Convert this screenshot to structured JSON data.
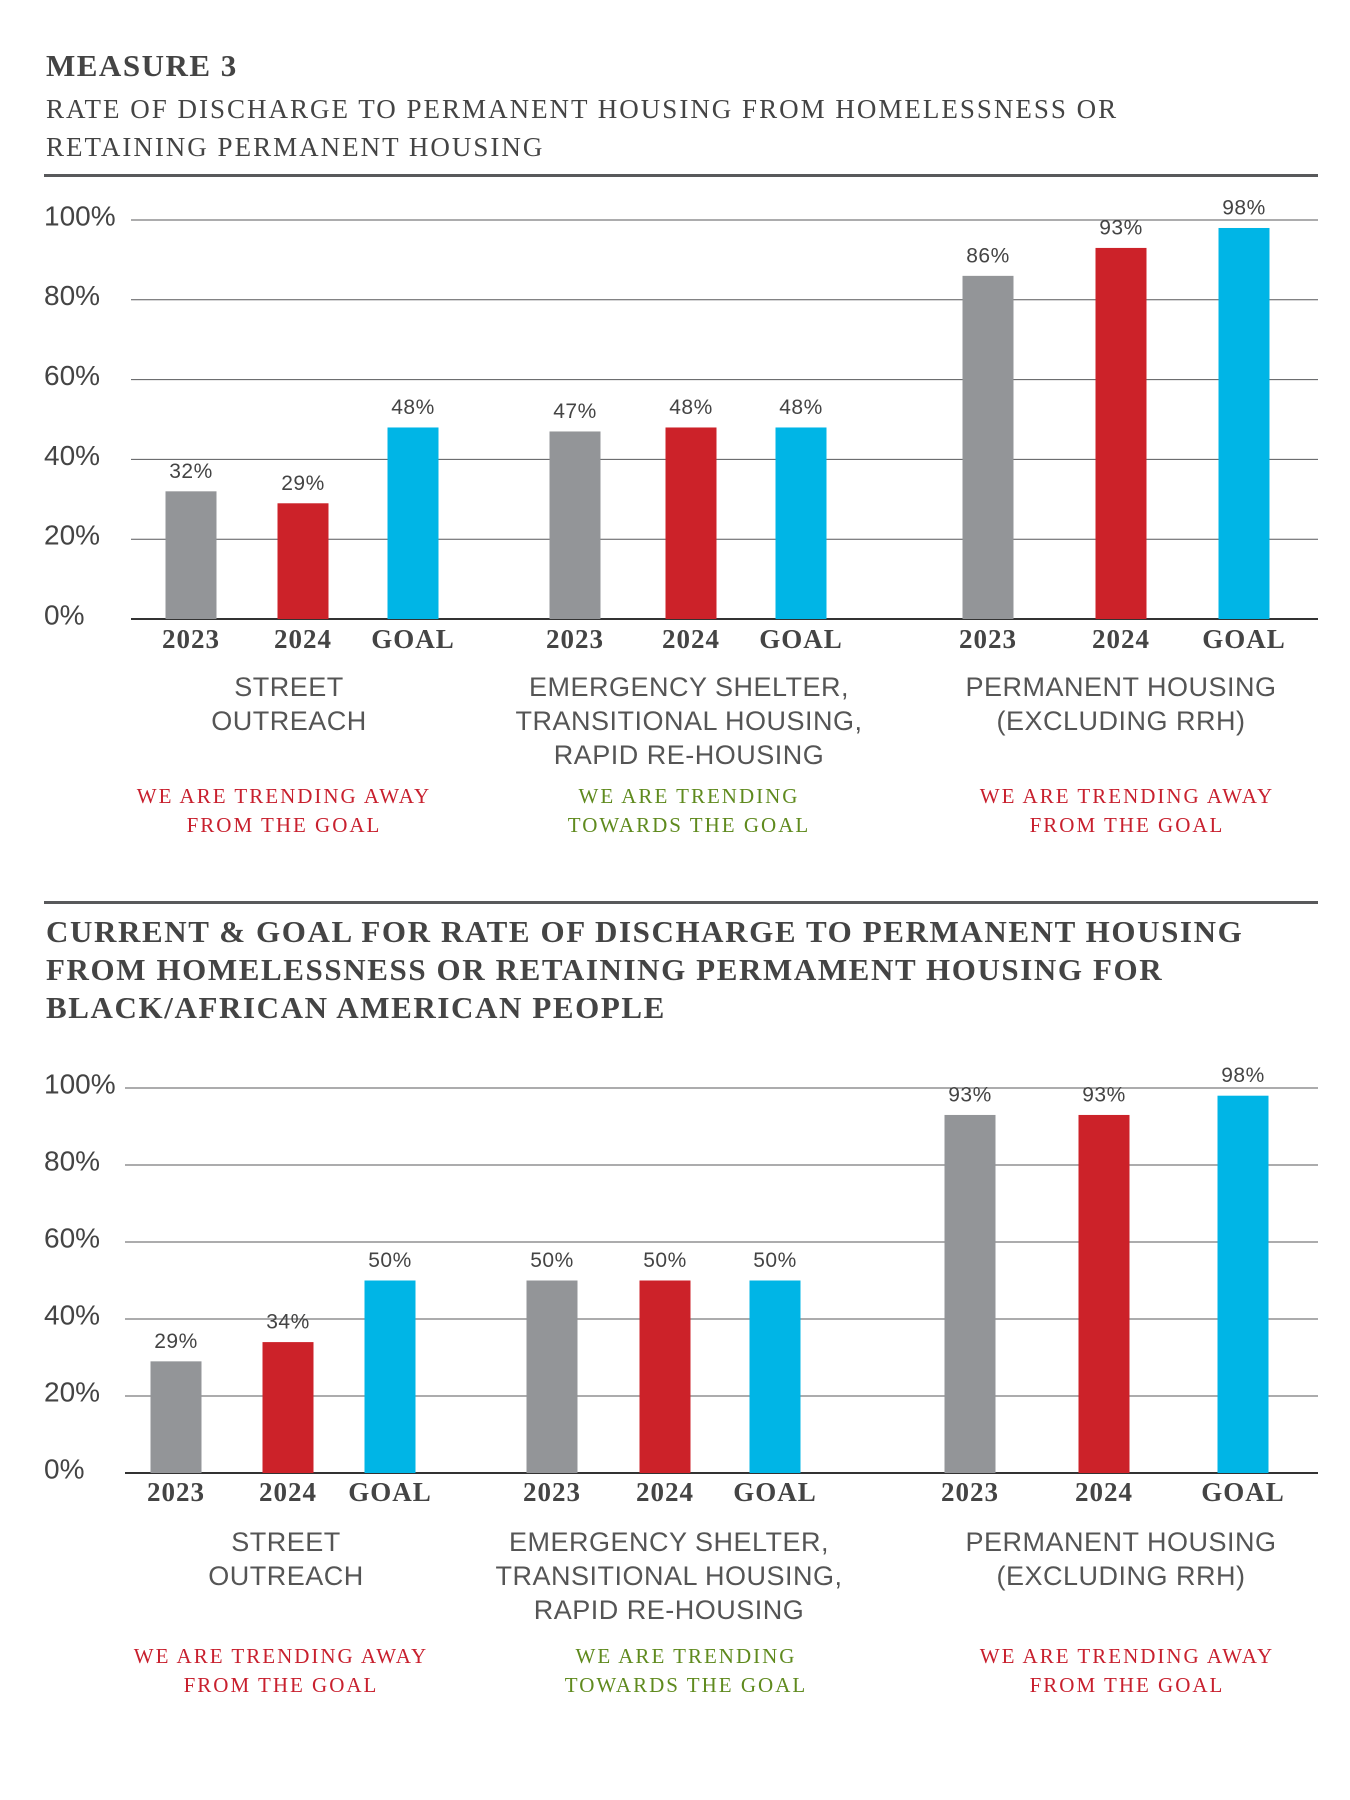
{
  "chart_data": [
    {
      "type": "bar",
      "heading": "MEASURE 3",
      "title": "RATE OF DISCHARGE TO PERMANENT HOUSING FROM HOMELESSNESS OR RETAINING PERMANENT HOUSING",
      "categories": [
        "STREET OUTREACH",
        "EMERGENCY SHELTER, TRANSITIONAL HOUSING, RAPID RE-HOUSING",
        "PERMANENT HOUSING (EXCLUDING RRH)"
      ],
      "series": [
        {
          "name": "2023",
          "color": "#939598",
          "values": [
            32,
            47,
            86
          ],
          "value_labels": [
            "32%",
            "47%",
            "86%"
          ]
        },
        {
          "name": "2024",
          "color": "#cc2229",
          "values": [
            29,
            48,
            93
          ],
          "value_labels": [
            "29%",
            "48%",
            "93%"
          ]
        },
        {
          "name": "GOAL",
          "color": "#00b5e6",
          "values": [
            48,
            48,
            98
          ],
          "value_labels": [
            "48%",
            "48%",
            "98%"
          ]
        }
      ],
      "notes": [
        {
          "text": "WE ARE TRENDING AWAY FROM THE GOAL",
          "color": "#c8202e"
        },
        {
          "text": "WE ARE TRENDING TOWARDS THE GOAL",
          "color": "#5f8a1e"
        },
        {
          "text": "WE ARE TRENDING AWAY FROM THE GOAL",
          "color": "#c8202e"
        }
      ],
      "ylim": [
        0,
        100
      ],
      "yticks": [
        {
          "value": 0,
          "label": "0%"
        },
        {
          "value": 20,
          "label": "20%"
        },
        {
          "value": 40,
          "label": "40%"
        },
        {
          "value": 60,
          "label": "60%"
        },
        {
          "value": 80,
          "label": "80%"
        },
        {
          "value": 100,
          "label": "100%"
        }
      ],
      "grid": true
    },
    {
      "type": "bar",
      "title": "CURRENT & GOAL FOR RATE OF DISCHARGE TO PERMANENT HOUSING FROM HOMELESSNESS OR RETAINING PERMAMENT HOUSING FOR BLACK/AFRICAN AMERICAN PEOPLE",
      "categories": [
        "STREET OUTREACH",
        "EMERGENCY SHELTER, TRANSITIONAL HOUSING, RAPID RE-HOUSING",
        "PERMANENT HOUSING (EXCLUDING RRH)"
      ],
      "series": [
        {
          "name": "2023",
          "color": "#939598",
          "values": [
            29,
            50,
            93
          ],
          "value_labels": [
            "29%",
            "50%",
            "93%"
          ]
        },
        {
          "name": "2024",
          "color": "#cc2229",
          "values": [
            34,
            50,
            93
          ],
          "value_labels": [
            "34%",
            "50%",
            "93%"
          ]
        },
        {
          "name": "GOAL",
          "color": "#00b5e6",
          "values": [
            50,
            50,
            98
          ],
          "value_labels": [
            "50%",
            "50%",
            "98%"
          ]
        }
      ],
      "notes": [
        {
          "text": "WE ARE TRENDING AWAY FROM THE GOAL",
          "color": "#c8202e"
        },
        {
          "text": "WE ARE TRENDING TOWARDS THE GOAL",
          "color": "#5f8a1e"
        },
        {
          "text": "WE ARE TRENDING AWAY FROM THE GOAL",
          "color": "#c8202e"
        }
      ],
      "ylim": [
        0,
        100
      ],
      "yticks": [
        {
          "value": 0,
          "label": "0%"
        },
        {
          "value": 20,
          "label": "20%"
        },
        {
          "value": 40,
          "label": "40%"
        },
        {
          "value": 60,
          "label": "60%"
        },
        {
          "value": 80,
          "label": "80%"
        },
        {
          "value": 100,
          "label": "100%"
        }
      ],
      "grid": true
    }
  ]
}
